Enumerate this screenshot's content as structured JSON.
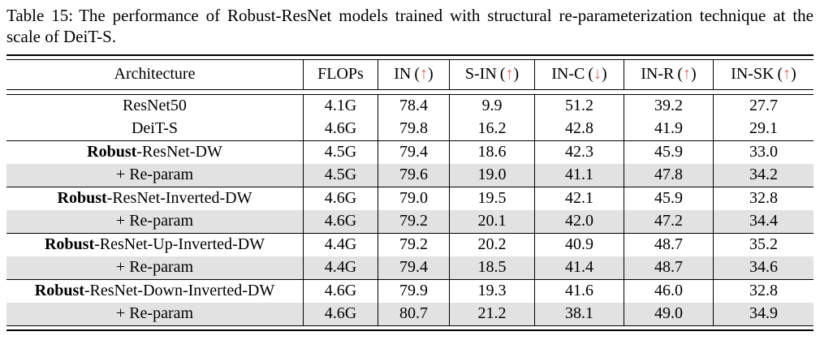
{
  "caption": {
    "label": "Table 15:",
    "text": "The performance of Robust-ResNet models trained with structural re-parameterization technique at the scale of DeiT-S."
  },
  "colors": {
    "arrow_accent": "#e25f5f",
    "highlight_row_bg": "#e2e2e2",
    "text": "#000000",
    "background": "#ffffff"
  },
  "glyphs": {
    "up": "↑",
    "down": "↓"
  },
  "table": {
    "columns": [
      {
        "label": "Architecture",
        "arrow": null
      },
      {
        "label": "FLOPs",
        "arrow": null
      },
      {
        "label": "IN",
        "arrow": "up"
      },
      {
        "label": "S-IN",
        "arrow": "up"
      },
      {
        "label": "IN-C",
        "arrow": "down"
      },
      {
        "label": "IN-R",
        "arrow": "up"
      },
      {
        "label": "IN-SK",
        "arrow": "up"
      }
    ],
    "sections": [
      {
        "rows": [
          {
            "arch_bold": "",
            "arch_rest": "ResNet50",
            "highlight": false,
            "values": [
              "4.1G",
              "78.4",
              "9.9",
              "51.2",
              "39.2",
              "27.7"
            ]
          },
          {
            "arch_bold": "",
            "arch_rest": "DeiT-S",
            "highlight": false,
            "values": [
              "4.6G",
              "79.8",
              "16.2",
              "42.8",
              "41.9",
              "29.1"
            ]
          }
        ]
      },
      {
        "rows": [
          {
            "arch_bold": "Robust",
            "arch_rest": "-ResNet-DW",
            "highlight": false,
            "values": [
              "4.5G",
              "79.4",
              "18.6",
              "42.3",
              "45.9",
              "33.0"
            ]
          },
          {
            "arch_bold": "",
            "arch_rest": "+ Re-param",
            "highlight": true,
            "values": [
              "4.5G",
              "79.6",
              "19.0",
              "41.1",
              "47.8",
              "34.2"
            ]
          }
        ]
      },
      {
        "rows": [
          {
            "arch_bold": "Robust",
            "arch_rest": "-ResNet-Inverted-DW",
            "highlight": false,
            "values": [
              "4.6G",
              "79.0",
              "19.5",
              "42.1",
              "45.9",
              "32.8"
            ]
          },
          {
            "arch_bold": "",
            "arch_rest": "+ Re-param",
            "highlight": true,
            "values": [
              "4.6G",
              "79.2",
              "20.1",
              "42.0",
              "47.2",
              "34.4"
            ]
          }
        ]
      },
      {
        "rows": [
          {
            "arch_bold": "Robust",
            "arch_rest": "-ResNet-Up-Inverted-DW",
            "highlight": false,
            "values": [
              "4.4G",
              "79.2",
              "20.2",
              "40.9",
              "48.7",
              "35.2"
            ]
          },
          {
            "arch_bold": "",
            "arch_rest": "+ Re-param",
            "highlight": true,
            "values": [
              "4.4G",
              "79.4",
              "18.5",
              "41.4",
              "48.7",
              "34.6"
            ]
          }
        ]
      },
      {
        "rows": [
          {
            "arch_bold": "Robust",
            "arch_rest": "-ResNet-Down-Inverted-DW",
            "highlight": false,
            "values": [
              "4.6G",
              "79.9",
              "19.3",
              "41.6",
              "46.0",
              "32.8"
            ]
          },
          {
            "arch_bold": "",
            "arch_rest": "+ Re-param",
            "highlight": true,
            "values": [
              "4.6G",
              "80.7",
              "21.2",
              "38.1",
              "49.0",
              "34.9"
            ]
          }
        ]
      }
    ]
  }
}
